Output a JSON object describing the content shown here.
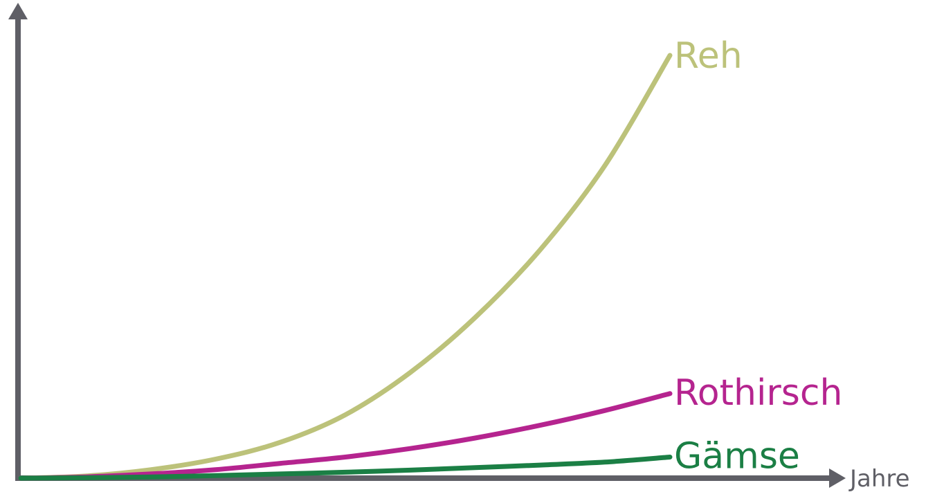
{
  "chart_data": {
    "type": "line",
    "title": "",
    "xlabel": "Jahre",
    "ylabel": "",
    "xlim": [
      0,
      1
    ],
    "ylim": [
      0,
      1
    ],
    "grid": false,
    "legend": "inline-right",
    "axis_color": "#5f5f66",
    "series": [
      {
        "name": "Reh",
        "color": "#bcc27a",
        "x": [
          0,
          0.1,
          0.2,
          0.3,
          0.4,
          0.5,
          0.6,
          0.7,
          0.8,
          0.9,
          1.0
        ],
        "y": [
          0,
          0.005,
          0.02,
          0.045,
          0.085,
          0.15,
          0.25,
          0.38,
          0.54,
          0.74,
          1.0
        ]
      },
      {
        "name": "Rothirsch",
        "color": "#b5248f",
        "x": [
          0,
          0.1,
          0.2,
          0.3,
          0.4,
          0.5,
          0.6,
          0.7,
          0.8,
          0.9,
          1.0
        ],
        "y": [
          0,
          0.003,
          0.01,
          0.02,
          0.035,
          0.05,
          0.07,
          0.095,
          0.125,
          0.16,
          0.2
        ]
      },
      {
        "name": "Gämse",
        "color": "#1b7f45",
        "x": [
          0,
          0.1,
          0.2,
          0.3,
          0.4,
          0.5,
          0.6,
          0.7,
          0.8,
          0.9,
          1.0
        ],
        "y": [
          0,
          0.001,
          0.003,
          0.006,
          0.01,
          0.014,
          0.019,
          0.025,
          0.031,
          0.038,
          0.05
        ]
      }
    ]
  }
}
